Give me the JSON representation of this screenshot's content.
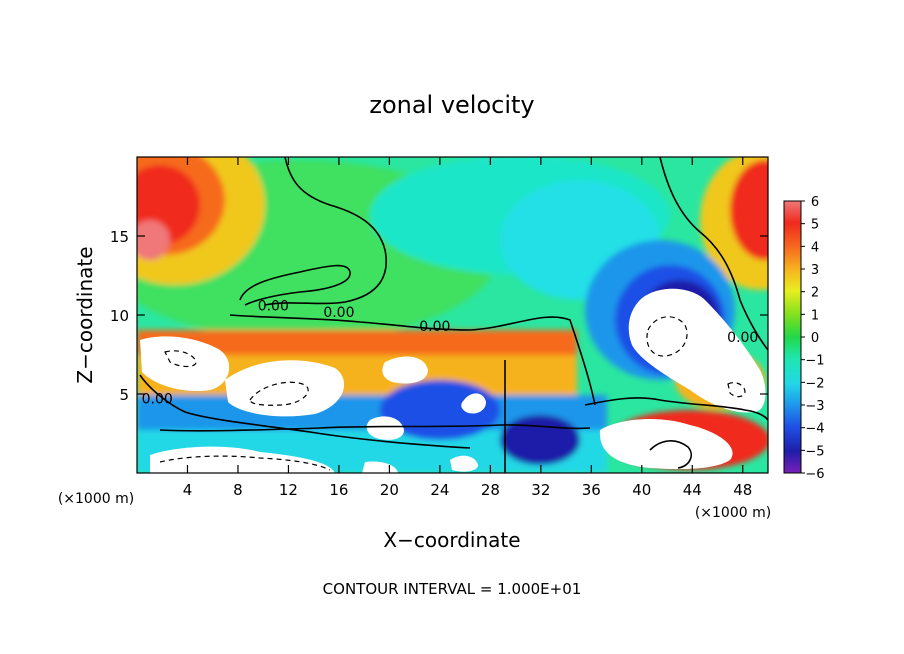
{
  "chart_data": {
    "type": "heatmap",
    "title": "zonal velocity",
    "xlabel": "X−coordinate",
    "ylabel": "Z−coordinate",
    "x_unit_left": "(×1000 m)",
    "x_unit_right": "(×1000 m)",
    "footer": "CONTOUR INTERVAL = 1.000E+01",
    "xlim": [
      0,
      50
    ],
    "ylim": [
      0,
      20
    ],
    "x_ticks": [
      4,
      8,
      12,
      16,
      20,
      24,
      28,
      32,
      36,
      40,
      44,
      48
    ],
    "y_ticks": [
      5,
      10,
      15
    ],
    "colorbar": {
      "range": [
        -6,
        6
      ],
      "ticks": [
        6,
        5,
        4,
        3,
        2,
        1,
        0,
        -1,
        -2,
        -3,
        -4,
        -5,
        -6
      ],
      "tick_labels": [
        "6",
        "5",
        "4",
        "3",
        "2",
        "1",
        "0",
        "−1",
        "−2",
        "−3",
        "−4",
        "−5",
        "−6"
      ],
      "colors": [
        "#7a1fb8",
        "#1e1ea8",
        "#1f4fe6",
        "#1f96ea",
        "#22d8e6",
        "#1fe6b0",
        "#22d848",
        "#7fe01f",
        "#e8ee1f",
        "#f6b21f",
        "#f66a1f",
        "#f02a1f",
        "#f07878"
      ]
    },
    "contour_labels": [
      {
        "text": "0.00",
        "x": 10.8,
        "z": 10.6
      },
      {
        "text": "0.00",
        "x": 16.0,
        "z": 10.2
      },
      {
        "text": "0.00",
        "x": 23.6,
        "z": 9.3
      },
      {
        "text": "0.00",
        "x": 48.0,
        "z": 8.6
      },
      {
        "text": "0.00",
        "x": 1.6,
        "z": 4.7
      }
    ]
  }
}
